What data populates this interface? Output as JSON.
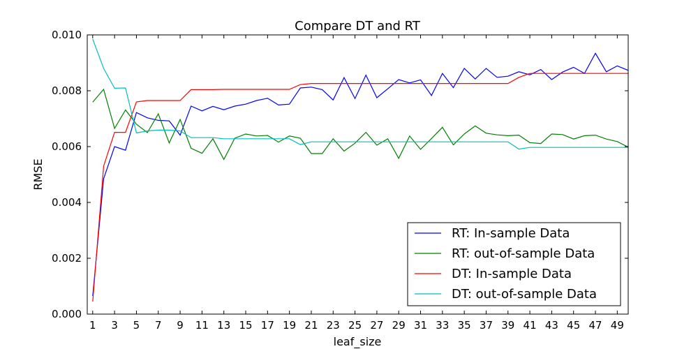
{
  "chart_data": {
    "type": "line",
    "title": "Compare DT and RT",
    "xlabel": "leaf_size",
    "ylabel": "RMSE",
    "xlim": [
      0.5,
      50
    ],
    "ylim": [
      0.0,
      0.01
    ],
    "xticks": [
      1,
      3,
      5,
      7,
      9,
      11,
      13,
      15,
      17,
      19,
      21,
      23,
      25,
      27,
      29,
      31,
      33,
      35,
      37,
      39,
      41,
      43,
      45,
      47,
      49
    ],
    "xtick_labels": [
      "1",
      "3",
      "5",
      "7",
      "9",
      "11",
      "13",
      "15",
      "17",
      "19",
      "21",
      "23",
      "25",
      "27",
      "29",
      "31",
      "33",
      "35",
      "37",
      "39",
      "41",
      "43",
      "45",
      "47",
      "49"
    ],
    "yticks": [
      0.0,
      0.002,
      0.004,
      0.006,
      0.008,
      0.01
    ],
    "ytick_labels": [
      "0.000",
      "0.002",
      "0.004",
      "0.006",
      "0.008",
      "0.010"
    ],
    "grid": false,
    "legend_position": "lower-right",
    "x": [
      1,
      2,
      3,
      4,
      5,
      6,
      7,
      8,
      9,
      10,
      11,
      12,
      13,
      14,
      15,
      16,
      17,
      18,
      19,
      20,
      21,
      22,
      23,
      24,
      25,
      26,
      27,
      28,
      29,
      30,
      31,
      32,
      33,
      34,
      35,
      36,
      37,
      38,
      39,
      40,
      41,
      42,
      43,
      44,
      45,
      46,
      47,
      48,
      49,
      50
    ],
    "series": [
      {
        "name": "RT: In-sample Data",
        "color": "#0000ff",
        "values": [
          0.00065,
          0.00485,
          0.006,
          0.00587,
          0.00722,
          0.00703,
          0.00694,
          0.00692,
          0.00641,
          0.00745,
          0.00728,
          0.00744,
          0.00732,
          0.00745,
          0.00752,
          0.00765,
          0.00773,
          0.00749,
          0.00752,
          0.0081,
          0.00813,
          0.00804,
          0.00767,
          0.00847,
          0.00772,
          0.00856,
          0.00775,
          0.00807,
          0.0084,
          0.00828,
          0.00839,
          0.00783,
          0.00862,
          0.00811,
          0.0088,
          0.00842,
          0.0088,
          0.00848,
          0.00852,
          0.00868,
          0.00857,
          0.00876,
          0.0084,
          0.00867,
          0.00884,
          0.00862,
          0.00934,
          0.00868,
          0.00889,
          0.00873
        ]
      },
      {
        "name": "RT: out-of-sample Data",
        "color": "#008000",
        "values": [
          0.00759,
          0.00805,
          0.00665,
          0.00731,
          0.0068,
          0.0065,
          0.00717,
          0.00613,
          0.00697,
          0.00594,
          0.00576,
          0.00628,
          0.00554,
          0.0063,
          0.00645,
          0.00638,
          0.0064,
          0.00616,
          0.00638,
          0.0063,
          0.00575,
          0.00575,
          0.00628,
          0.00584,
          0.00612,
          0.00651,
          0.00605,
          0.00628,
          0.00558,
          0.00638,
          0.0059,
          0.00629,
          0.00669,
          0.00606,
          0.00645,
          0.00674,
          0.00648,
          0.00642,
          0.00639,
          0.00641,
          0.00614,
          0.00611,
          0.00645,
          0.00643,
          0.00627,
          0.00639,
          0.00641,
          0.00627,
          0.00618,
          0.00598
        ]
      },
      {
        "name": "DT: In-sample Data",
        "color": "#ff0000",
        "values": [
          0.00045,
          0.0053,
          0.00651,
          0.00651,
          0.0076,
          0.00765,
          0.00765,
          0.00765,
          0.00765,
          0.00804,
          0.00804,
          0.00804,
          0.00805,
          0.00805,
          0.00805,
          0.00805,
          0.00805,
          0.00805,
          0.00805,
          0.00822,
          0.00826,
          0.00826,
          0.00826,
          0.00826,
          0.00826,
          0.00826,
          0.00826,
          0.00826,
          0.00826,
          0.00826,
          0.00826,
          0.00826,
          0.00826,
          0.00826,
          0.00826,
          0.00826,
          0.00826,
          0.00826,
          0.00826,
          0.00848,
          0.00862,
          0.00862,
          0.00862,
          0.00862,
          0.00862,
          0.00862,
          0.00862,
          0.00862,
          0.00862,
          0.00862
        ]
      },
      {
        "name": "DT: out-of-sample Data",
        "color": "#00bfbf",
        "values": [
          0.00985,
          0.0088,
          0.00809,
          0.0081,
          0.00649,
          0.00656,
          0.00659,
          0.00659,
          0.00656,
          0.00632,
          0.00632,
          0.00632,
          0.00628,
          0.00628,
          0.00628,
          0.00628,
          0.00628,
          0.00628,
          0.00628,
          0.00607,
          0.00617,
          0.00617,
          0.00617,
          0.00617,
          0.00617,
          0.00617,
          0.00617,
          0.00617,
          0.00617,
          0.00617,
          0.00617,
          0.00617,
          0.00617,
          0.00617,
          0.00617,
          0.00617,
          0.00617,
          0.00617,
          0.00617,
          0.00591,
          0.00597,
          0.00597,
          0.00597,
          0.00597,
          0.00597,
          0.00597,
          0.00597,
          0.00597,
          0.00597,
          0.00597
        ]
      }
    ]
  }
}
